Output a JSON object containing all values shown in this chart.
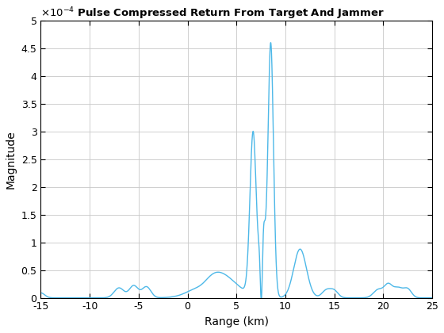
{
  "title": "Pulse Compressed Return From Target And Jammer",
  "xlabel": "Range (km)",
  "ylabel": "Magnitude",
  "xlim": [
    -15,
    25
  ],
  "ylim": [
    0,
    0.0005
  ],
  "line_color": "#4db8e8",
  "line_width": 1.0,
  "ytick_scale": 0.0001,
  "ytick_vals": [
    0,
    0.5,
    1.0,
    1.5,
    2.0,
    2.5,
    3.0,
    3.5,
    4.0,
    4.5,
    5.0
  ],
  "ytick_labels": [
    "0",
    "0.5",
    "1",
    "1.5",
    "2",
    "2.5",
    "3",
    "3.5",
    "4",
    "4.5",
    "5"
  ],
  "xticks": [
    -15,
    -10,
    -5,
    0,
    5,
    10,
    15,
    20,
    25
  ],
  "grid_color": "#c8c8c8",
  "background_color": "#ffffff",
  "box_color": "#000000"
}
